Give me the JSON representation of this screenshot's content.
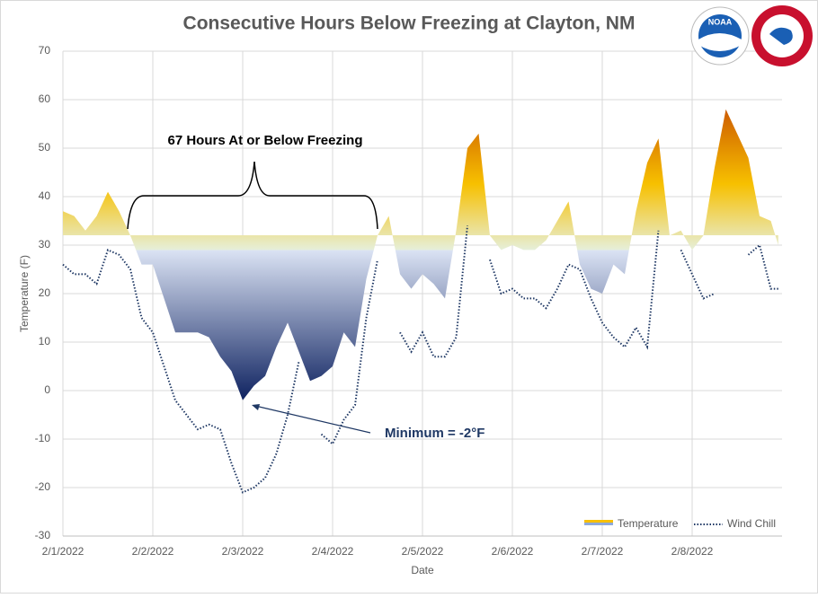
{
  "chart_data": {
    "type": "area_line",
    "title": "Consecutive Hours Below Freezing at Clayton, NM",
    "xlabel": "Date",
    "ylabel": "Temperature  (F)",
    "logo_text": "NOAA",
    "annotations": [
      "67 Hours At or Below Freezing",
      "Minimum = -2°F"
    ],
    "x": [
      0,
      3,
      6,
      9,
      12,
      15,
      18,
      21,
      24,
      27,
      30,
      33,
      36,
      39,
      42,
      45,
      48,
      51,
      54,
      57,
      60,
      63,
      66,
      69,
      72,
      75,
      78,
      81,
      84,
      87,
      90,
      93,
      96,
      99,
      102,
      105,
      108,
      111,
      114,
      117,
      120,
      123,
      126,
      129,
      132,
      135,
      138,
      141,
      144,
      147,
      150,
      153,
      156,
      159,
      162,
      165,
      168,
      171,
      174,
      177,
      180,
      183,
      186,
      189,
      191
    ],
    "series": [
      {
        "name": "Temperature",
        "color": "#f5b800",
        "values": [
          37,
          36,
          33,
          36,
          41,
          37,
          32,
          26,
          26,
          19,
          12,
          12,
          12,
          11,
          7,
          4,
          -2,
          1,
          3,
          9,
          14,
          8,
          2,
          3,
          5,
          12,
          9,
          23,
          32,
          36,
          24,
          21,
          24,
          22,
          19,
          33,
          50,
          53,
          32,
          29,
          30,
          29,
          29,
          31,
          35,
          39,
          26,
          21,
          20,
          26,
          24,
          37,
          47,
          52,
          32,
          33,
          29,
          32,
          46,
          58,
          53,
          48,
          36,
          35,
          30
        ]
      },
      {
        "name": "Wind Chill",
        "color": "#1f3864",
        "values": [
          26,
          24,
          24,
          22,
          29,
          28,
          25,
          15,
          12,
          5,
          -2,
          -5,
          -8,
          -7,
          -8,
          -15,
          -21,
          -20,
          -18,
          -13,
          -5,
          6,
          null,
          -9,
          -11,
          -6,
          -3,
          15,
          27,
          null,
          12,
          8,
          12,
          7,
          7,
          11,
          34,
          null,
          27,
          20,
          21,
          19,
          19,
          17,
          21,
          26,
          25,
          19,
          14,
          11,
          9,
          13,
          9,
          33,
          null,
          29,
          24,
          19,
          20,
          null,
          null,
          28,
          30,
          21,
          21
        ]
      }
    ],
    "xlim": [
      0,
      192
    ],
    "xticks": [
      {
        "value": 0,
        "label": "2/1/2022"
      },
      {
        "value": 24,
        "label": "2/2/2022"
      },
      {
        "value": 48,
        "label": "2/3/2022"
      },
      {
        "value": 72,
        "label": "2/4/2022"
      },
      {
        "value": 96,
        "label": "2/5/2022"
      },
      {
        "value": 120,
        "label": "2/6/2022"
      },
      {
        "value": 144,
        "label": "2/7/2022"
      },
      {
        "value": 168,
        "label": "2/8/2022"
      }
    ],
    "ylim": [
      -30,
      70
    ],
    "yticks": [
      -30,
      -20,
      -10,
      0,
      10,
      20,
      30,
      40,
      50,
      60,
      70
    ],
    "grid": true,
    "legend": "lower right"
  }
}
